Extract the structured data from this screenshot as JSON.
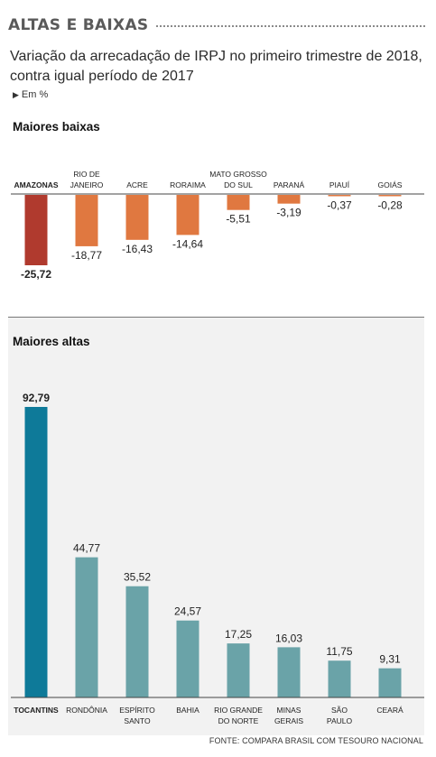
{
  "header": {
    "title": "ALTAS E BAIXAS"
  },
  "subtitle": "Variação da arrecadação de IRPJ no primeiro trimestre de 2018, contra igual período de 2017",
  "unit_label": "Em %",
  "source": "FONTE: COMPARA BRASIL COM TESOURO NACIONAL",
  "colors": {
    "lowest": "#b03a2e",
    "low": "#e07840",
    "highest": "#0e7a99",
    "high": "#6aa3a8",
    "axis": "#444444"
  },
  "chart_data": [
    {
      "type": "bar",
      "title": "Maiores baixas",
      "categories": [
        {
          "label": [
            "AMAZONAS"
          ],
          "bold": true
        },
        {
          "label": [
            "RIO DE",
            "JANEIRO"
          ]
        },
        {
          "label": [
            "ACRE"
          ]
        },
        {
          "label": [
            "RORAIMA"
          ]
        },
        {
          "label": [
            "MATO GROSSO",
            "DO SUL"
          ]
        },
        {
          "label": [
            "PARANÁ"
          ]
        },
        {
          "label": [
            "PIAUÍ"
          ]
        },
        {
          "label": [
            "GOIÁS"
          ]
        }
      ],
      "values": [
        -25.72,
        -18.77,
        -16.43,
        -14.64,
        -5.51,
        -3.19,
        -0.37,
        -0.28
      ],
      "value_labels": [
        "-25,72",
        "-18,77",
        "-16,43",
        "-14,64",
        "-5,51",
        "-3,19",
        "-0,37",
        "-0,28"
      ],
      "ylim": [
        -25.72,
        0
      ],
      "grid": false,
      "legend": "none"
    },
    {
      "type": "bar",
      "title": "Maiores altas",
      "categories": [
        {
          "label": [
            "TOCANTINS"
          ],
          "bold": true
        },
        {
          "label": [
            "RONDÔNIA"
          ]
        },
        {
          "label": [
            "ESPÍRITO",
            "SANTO"
          ]
        },
        {
          "label": [
            "BAHIA"
          ]
        },
        {
          "label": [
            "RIO GRANDE",
            "DO NORTE"
          ]
        },
        {
          "label": [
            "MINAS",
            "GERAIS"
          ]
        },
        {
          "label": [
            "SÃO",
            "PAULO"
          ]
        },
        {
          "label": [
            "CEARÁ"
          ]
        }
      ],
      "values": [
        92.79,
        44.77,
        35.52,
        24.57,
        17.25,
        16.03,
        11.75,
        9.31
      ],
      "value_labels": [
        "92,79",
        "44,77",
        "35,52",
        "24,57",
        "17,25",
        "16,03",
        "11,75",
        "9,31"
      ],
      "ylim": [
        0,
        92.79
      ],
      "grid": false,
      "legend": "none"
    }
  ]
}
